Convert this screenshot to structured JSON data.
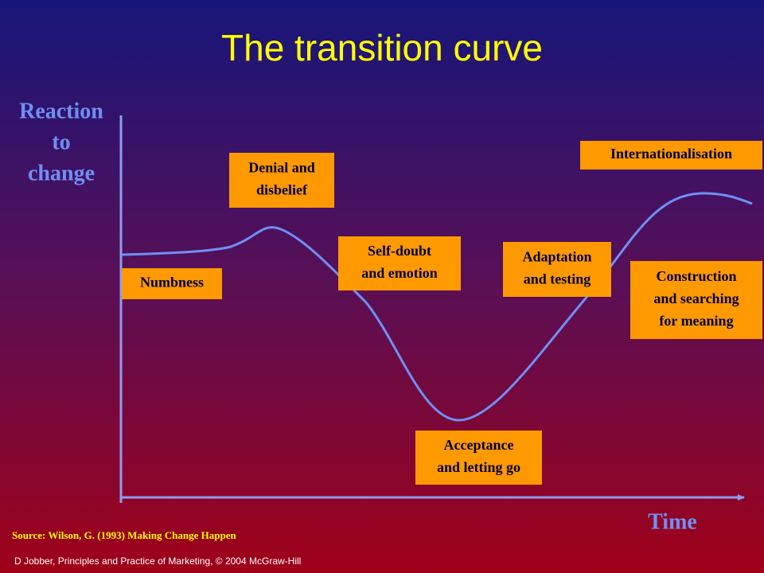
{
  "title": "The transition curve",
  "y_axis_label": [
    "Reaction",
    "to",
    "change"
  ],
  "x_axis_label": "Time",
  "stages": [
    {
      "lines": [
        "Numbness"
      ]
    },
    {
      "lines": [
        "Denial and",
        "disbelief"
      ]
    },
    {
      "lines": [
        "Self-doubt",
        "and emotion"
      ]
    },
    {
      "lines": [
        "Acceptance",
        "and letting go"
      ]
    },
    {
      "lines": [
        "Adaptation",
        "and testing"
      ]
    },
    {
      "lines": [
        "Construction",
        "and searching",
        "for meaning"
      ]
    },
    {
      "lines": [
        "Internationalisation"
      ]
    }
  ],
  "source": "Source: Wilson, G. (1993) Making Change Happen",
  "footer": "D Jobber, Principles and Practice of Marketing, © 2004 McGraw-Hill"
}
